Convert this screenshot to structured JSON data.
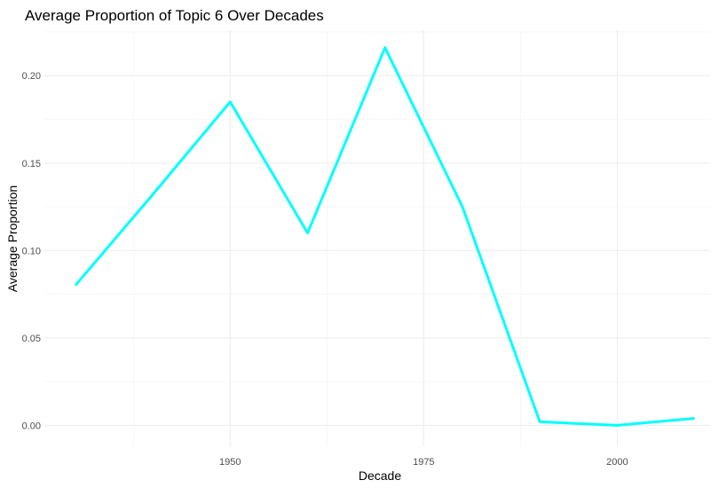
{
  "chart_data": {
    "type": "line",
    "title": "Average Proportion of Topic 6 Over Decades",
    "xlabel": "Decade",
    "ylabel": "Average Proportion",
    "x": [
      1930,
      1940,
      1950,
      1960,
      1970,
      1980,
      1990,
      2000,
      2010
    ],
    "series": [
      {
        "values": [
          0.08,
          0.132,
          0.185,
          0.11,
          0.216,
          0.125,
          0.002,
          0.0,
          0.004
        ]
      }
    ],
    "xlim": [
      1926,
      2012
    ],
    "ylim": [
      -0.012,
      0.226
    ],
    "xticks": [
      1950,
      1975,
      2000
    ],
    "xtick_labels": [
      "1950",
      "1975",
      "2000"
    ],
    "yticks": [
      0.0,
      0.05,
      0.1,
      0.15,
      0.2
    ],
    "ytick_labels": [
      "0.00",
      "0.05",
      "0.10",
      "0.15",
      "0.20"
    ],
    "grid": true,
    "legend": "none",
    "line_color": "#00ffff"
  }
}
